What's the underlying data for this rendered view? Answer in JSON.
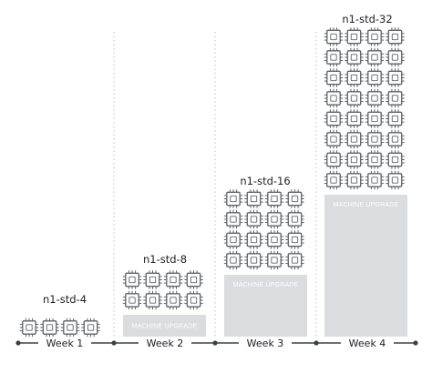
{
  "diagram": {
    "weeks": [
      {
        "week_label": "Week 1",
        "machine_label": "n1-std-4",
        "cpus": 4,
        "upgrade_label": ""
      },
      {
        "week_label": "Week 2",
        "machine_label": "n1-std-8",
        "cpus": 8,
        "upgrade_label": "MACHINE UPGRADE"
      },
      {
        "week_label": "Week 3",
        "machine_label": "n1-std-16",
        "cpus": 16,
        "upgrade_label": "MACHINE UPGRADE"
      },
      {
        "week_label": "Week 4",
        "machine_label": "n1-std-32",
        "cpus": 32,
        "upgrade_label": "MACHINE UPGRADE"
      }
    ],
    "colors": {
      "chip_stroke": "#5f6368",
      "upgrade_fill": "#dadce0",
      "axis": "#3c4043",
      "divider": "#bdc1c6"
    },
    "icon": "cpu-chip-icon"
  }
}
